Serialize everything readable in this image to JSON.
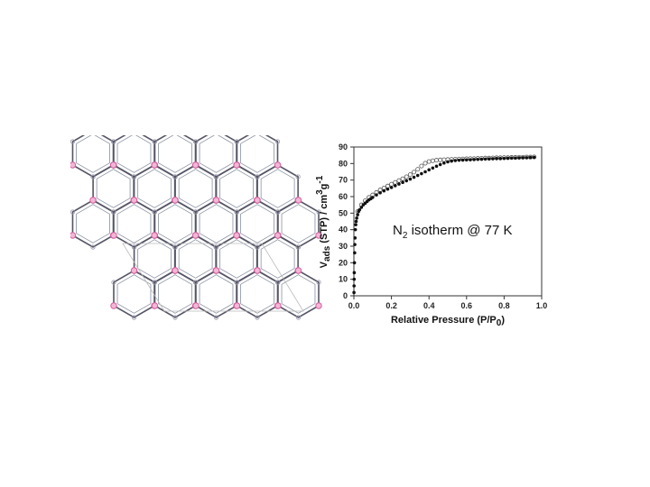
{
  "chart_data": {
    "type": "scatter",
    "xlabel": "Relative Pressure (P/P",
    "xlabel_sub": "0",
    "xlabel_end": ")",
    "ylabel_main": "V",
    "ylabel_sub": "ads",
    "ylabel_mid": " (STP) / cm",
    "ylabel_sup": "3",
    "ylabel_g": "g",
    "ylabel_sup2": "-1",
    "annotation_main": "N",
    "annotation_sub": "2",
    "annotation_rest": " isotherm @ 77 K",
    "xlim": [
      0,
      1.0
    ],
    "ylim": [
      0,
      90
    ],
    "x_ticks": [
      "0.0",
      "0.2",
      "0.4",
      "0.6",
      "0.8",
      "1.0"
    ],
    "y_ticks": [
      "0",
      "10",
      "20",
      "30",
      "40",
      "50",
      "60",
      "70",
      "80",
      "90"
    ],
    "grid": false,
    "series": [
      {
        "marker": "filled-circle",
        "color": "#111111",
        "x": [
          0.0005,
          0.001,
          0.0015,
          0.002,
          0.003,
          0.004,
          0.005,
          0.006,
          0.008,
          0.01,
          0.012,
          0.015,
          0.02,
          0.025,
          0.03,
          0.04,
          0.05,
          0.06,
          0.07,
          0.08,
          0.09,
          0.1,
          0.12,
          0.14,
          0.16,
          0.18,
          0.2,
          0.22,
          0.24,
          0.26,
          0.28,
          0.3,
          0.32,
          0.34,
          0.36,
          0.38,
          0.4,
          0.42,
          0.44,
          0.46,
          0.48,
          0.5,
          0.52,
          0.54,
          0.56,
          0.58,
          0.6,
          0.62,
          0.64,
          0.66,
          0.68,
          0.7,
          0.72,
          0.74,
          0.76,
          0.78,
          0.8,
          0.82,
          0.84,
          0.86,
          0.88,
          0.9,
          0.92,
          0.94,
          0.96
        ],
        "y": [
          2,
          6,
          10,
          14,
          20,
          26,
          31,
          35,
          40,
          43,
          45,
          47,
          49,
          51,
          52,
          53.5,
          55,
          56,
          57,
          58,
          58.7,
          59.5,
          61,
          62.3,
          63.5,
          64.5,
          65.5,
          66.6,
          67.6,
          68.6,
          69.6,
          70.6,
          71.7,
          72.8,
          73.9,
          75,
          76.2,
          77.3,
          78.4,
          79.4,
          80.3,
          81,
          81.5,
          81.8,
          82,
          82.1,
          82.2,
          82.3,
          82.4,
          82.5,
          82.6,
          82.7,
          82.8,
          82.9,
          83,
          83,
          83.1,
          83.2,
          83.3,
          83.3,
          83.4,
          83.5,
          83.5,
          83.6,
          83.7
        ]
      },
      {
        "marker": "open-circle",
        "color": "#555555",
        "x": [
          0.02,
          0.04,
          0.06,
          0.08,
          0.1,
          0.12,
          0.14,
          0.16,
          0.18,
          0.2,
          0.22,
          0.24,
          0.26,
          0.28,
          0.3,
          0.32,
          0.34,
          0.36,
          0.38,
          0.4,
          0.42,
          0.44,
          0.46,
          0.48,
          0.5,
          0.52,
          0.54,
          0.56,
          0.58,
          0.6,
          0.62,
          0.64,
          0.66,
          0.68,
          0.7,
          0.72,
          0.74,
          0.76,
          0.78,
          0.8,
          0.82,
          0.84,
          0.86,
          0.88,
          0.9,
          0.92,
          0.94,
          0.96
        ],
        "y": [
          51,
          55,
          57.5,
          59.5,
          61,
          62.5,
          64,
          65.2,
          66.4,
          67.5,
          68.6,
          69.7,
          70.8,
          72,
          73.3,
          74.8,
          76.5,
          78.5,
          80.2,
          81.2,
          81.7,
          82,
          82.2,
          82.3,
          82.4,
          82.5,
          82.6,
          82.7,
          82.8,
          82.9,
          83,
          83,
          83.1,
          83.2,
          83.3,
          83.3,
          83.4,
          83.5,
          83.5,
          83.6,
          83.6,
          83.7,
          83.7,
          83.8,
          83.8,
          83.9,
          83.9,
          84
        ]
      }
    ]
  }
}
